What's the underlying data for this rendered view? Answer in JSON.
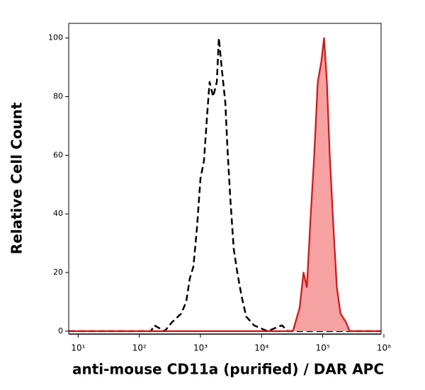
{
  "chart_data": {
    "type": "histogram-overlay",
    "xlabel": "anti-mouse CD11a (purified) / DAR APC",
    "ylabel": "Relative Cell Count",
    "xlog": true,
    "xlim": [
      7,
      900000
    ],
    "ylim": [
      -1,
      105
    ],
    "xticks": [
      {
        "value": 10,
        "label": "10¹"
      },
      {
        "value": 100,
        "label": "10²"
      },
      {
        "value": 1000,
        "label": "10³"
      },
      {
        "value": 10000,
        "label": "10⁴"
      },
      {
        "value": 100000,
        "label": "10⁵"
      },
      {
        "value": 1000000,
        "label": "10⁶"
      }
    ],
    "yticks": [
      0,
      20,
      40,
      60,
      80,
      100
    ],
    "series": [
      {
        "color": "#000000",
        "dashed": true,
        "fill": null,
        "x": [
          7,
          155,
          175,
          260,
          340,
          485,
          585,
          670,
          765,
          875,
          1000,
          1140,
          1300,
          1410,
          1610,
          1850,
          2000,
          2220,
          2550,
          2770,
          3080,
          3500,
          4000,
          4700,
          5600,
          7500,
          12500,
          21500,
          27000,
          900000
        ],
        "values": [
          0,
          0,
          2,
          0,
          3,
          6,
          10,
          18,
          22,
          35,
          52,
          58,
          75,
          85,
          80,
          85,
          100,
          90,
          78,
          62,
          45,
          28,
          20,
          12,
          5,
          2,
          0,
          2,
          0,
          0
        ]
      },
      {
        "color": "#dd1111",
        "dashed": false,
        "fill": "#f6a2a2",
        "x": [
          7,
          32500,
          42000,
          48500,
          55000,
          63000,
          72500,
          83000,
          95000,
          105000,
          117000,
          130000,
          150000,
          170000,
          195000,
          240000,
          275000,
          900000
        ],
        "values": [
          0,
          0,
          8,
          20,
          15,
          38,
          60,
          85,
          92,
          100,
          85,
          60,
          35,
          15,
          6,
          3,
          0,
          0
        ]
      }
    ]
  }
}
